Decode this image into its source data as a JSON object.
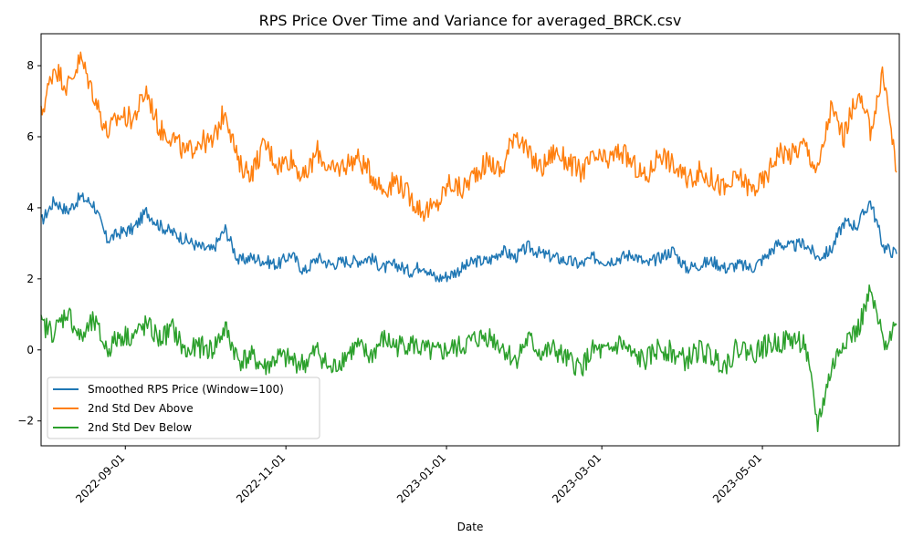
{
  "chart_data": {
    "type": "line",
    "title": "RPS Price Over Time and Variance for averaged_BRCK.csv",
    "xlabel": "Date",
    "ylabel": "",
    "xlim": [
      "2022-07-31",
      "2023-06-22"
    ],
    "ylim": [
      -2.7,
      8.9
    ],
    "x_ticks": [
      "2022-09-01",
      "2022-11-01",
      "2023-01-01",
      "2023-03-01",
      "2023-05-01"
    ],
    "y_ticks": [
      -2,
      0,
      2,
      4,
      6,
      8
    ],
    "grid": false,
    "legend_position": "lower-left",
    "x": [
      "2022-07-31",
      "2022-08-05",
      "2022-08-10",
      "2022-08-15",
      "2022-08-20",
      "2022-08-25",
      "2022-08-30",
      "2022-09-04",
      "2022-09-09",
      "2022-09-14",
      "2022-09-19",
      "2022-09-24",
      "2022-09-29",
      "2022-10-04",
      "2022-10-09",
      "2022-10-14",
      "2022-10-19",
      "2022-10-24",
      "2022-10-29",
      "2022-11-03",
      "2022-11-08",
      "2022-11-13",
      "2022-11-18",
      "2022-11-23",
      "2022-11-28",
      "2022-12-03",
      "2022-12-08",
      "2022-12-13",
      "2022-12-18",
      "2022-12-23",
      "2022-12-28",
      "2023-01-02",
      "2023-01-07",
      "2023-01-12",
      "2023-01-17",
      "2023-01-22",
      "2023-01-27",
      "2023-02-01",
      "2023-02-06",
      "2023-02-11",
      "2023-02-16",
      "2023-02-21",
      "2023-02-26",
      "2023-03-03",
      "2023-03-08",
      "2023-03-13",
      "2023-03-18",
      "2023-03-23",
      "2023-03-28",
      "2023-04-02",
      "2023-04-07",
      "2023-04-12",
      "2023-04-17",
      "2023-04-22",
      "2023-04-27",
      "2023-05-02",
      "2023-05-07",
      "2023-05-12",
      "2023-05-17",
      "2023-05-22",
      "2023-05-27",
      "2023-06-01",
      "2023-06-06",
      "2023-06-11",
      "2023-06-16",
      "2023-06-21"
    ],
    "series": [
      {
        "name": "Smoothed RPS Price (Window=100)",
        "color": "#1f77b4",
        "values": [
          3.6,
          4.2,
          3.9,
          4.3,
          4.1,
          3.1,
          3.3,
          3.4,
          3.9,
          3.5,
          3.3,
          3.1,
          2.9,
          2.8,
          3.4,
          2.5,
          2.6,
          2.5,
          2.4,
          2.7,
          2.2,
          2.6,
          2.4,
          2.5,
          2.5,
          2.6,
          2.3,
          2.4,
          2.2,
          2.4,
          2.0,
          2.1,
          2.3,
          2.5,
          2.5,
          2.8,
          2.6,
          2.9,
          2.7,
          2.6,
          2.5,
          2.4,
          2.6,
          2.5,
          2.6,
          2.7,
          2.4,
          2.6,
          2.8,
          2.3,
          2.4,
          2.5,
          2.3,
          2.4,
          2.3,
          2.6,
          3.0,
          2.9,
          3.0,
          2.6,
          2.8,
          3.6,
          3.5,
          4.2,
          2.9,
          2.7
        ]
      },
      {
        "name": "2nd Std Dev Above",
        "color": "#ff7f0e",
        "values": [
          6.6,
          8.0,
          7.4,
          8.2,
          7.2,
          6.1,
          6.6,
          6.5,
          7.3,
          6.2,
          6.0,
          5.5,
          5.9,
          5.8,
          6.8,
          5.2,
          5.0,
          5.8,
          5.2,
          5.4,
          4.8,
          5.6,
          5.0,
          5.2,
          5.4,
          5.0,
          4.5,
          4.8,
          4.3,
          3.9,
          4.0,
          4.7,
          4.5,
          5.0,
          5.3,
          5.0,
          6.2,
          5.5,
          5.1,
          5.6,
          5.3,
          5.0,
          5.4,
          5.3,
          5.6,
          5.2,
          4.8,
          5.6,
          5.2,
          4.8,
          5.0,
          4.8,
          4.5,
          4.9,
          4.5,
          4.8,
          5.6,
          5.5,
          5.8,
          5.0,
          6.8,
          6.0,
          7.2,
          6.2,
          7.8,
          5.0
        ]
      },
      {
        "name": "2nd Std Dev Below",
        "color": "#2ca02c",
        "values": [
          0.7,
          0.5,
          1.1,
          0.3,
          0.8,
          0.0,
          0.4,
          0.4,
          0.7,
          0.3,
          0.6,
          -0.1,
          0.1,
          0.0,
          0.6,
          -0.3,
          -0.2,
          -0.5,
          -0.2,
          -0.3,
          -0.4,
          0.0,
          -0.6,
          -0.2,
          0.1,
          -0.2,
          0.3,
          0.1,
          0.2,
          0.0,
          -0.1,
          0.0,
          0.1,
          0.3,
          0.4,
          0.1,
          -0.3,
          0.3,
          -0.1,
          0.0,
          -0.3,
          -0.5,
          0.0,
          -0.1,
          0.2,
          -0.2,
          -0.3,
          0.1,
          -0.1,
          -0.3,
          0.0,
          -0.2,
          -0.4,
          0.1,
          -0.1,
          0.1,
          0.2,
          0.3,
          0.2,
          -2.1,
          -0.6,
          0.3,
          0.5,
          1.6,
          0.2,
          0.7
        ]
      }
    ]
  }
}
